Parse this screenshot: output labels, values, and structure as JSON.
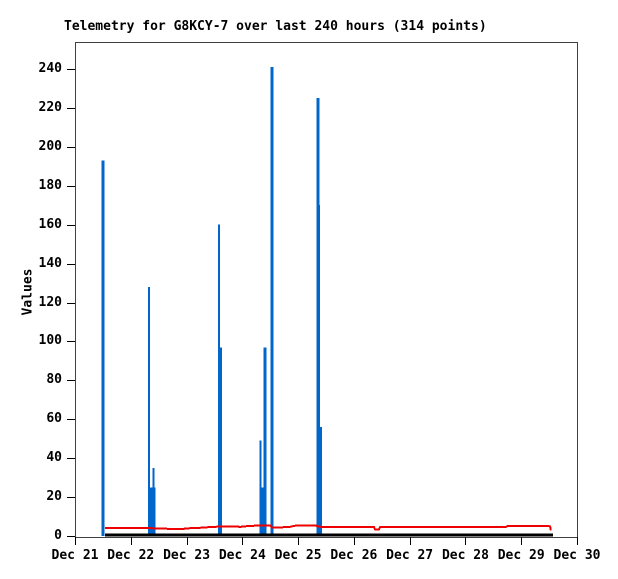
{
  "chart_data": {
    "type": "line",
    "title": "Telemetry for G8KCY-7 over last 240 hours (314 points)",
    "xlabel": "",
    "ylabel": "Values",
    "x_tick_labels": [
      "Dec 21",
      "Dec 22",
      "Dec 23",
      "Dec 24",
      "Dec 25",
      "Dec 26",
      "Dec 27",
      "Dec 28",
      "Dec 29",
      "Dec 30"
    ],
    "x_range": [
      21,
      30
    ],
    "y_ticks": [
      0,
      20,
      40,
      60,
      80,
      100,
      120,
      140,
      160,
      180,
      200,
      220,
      240
    ],
    "y_range": [
      0,
      254
    ],
    "grid": false,
    "legend": "none",
    "colors": {
      "impulse_series": "#0066cc",
      "line_series": "#ee0000",
      "baseline_series": "#000000",
      "border": "#404040"
    },
    "series": [
      {
        "name": "blue-impulse",
        "type": "impulse",
        "color": "#0066cc",
        "points": [
          {
            "x": 21.5,
            "y": 193,
            "w": 3
          },
          {
            "x": 22.33,
            "y": 128,
            "w": 2
          },
          {
            "x": 22.39,
            "y": 25,
            "w": 6
          },
          {
            "x": 22.41,
            "y": 35,
            "w": 2
          },
          {
            "x": 23.58,
            "y": 160,
            "w": 2
          },
          {
            "x": 23.6,
            "y": 97,
            "w": 4
          },
          {
            "x": 24.33,
            "y": 49,
            "w": 2
          },
          {
            "x": 24.37,
            "y": 25,
            "w": 6
          },
          {
            "x": 24.41,
            "y": 97,
            "w": 3
          },
          {
            "x": 24.53,
            "y": 241,
            "w": 3
          },
          {
            "x": 25.36,
            "y": 225,
            "w": 3
          },
          {
            "x": 25.37,
            "y": 170,
            "w": 3
          },
          {
            "x": 25.38,
            "y": 56,
            "w": 5
          }
        ]
      },
      {
        "name": "black-baseline",
        "type": "line",
        "color": "#000000",
        "width": 3,
        "points": [
          [
            21.54,
            0.5
          ],
          [
            29.57,
            0.5
          ]
        ]
      },
      {
        "name": "red-line",
        "type": "line",
        "color": "#ee0000",
        "width": 2,
        "points": [
          [
            21.54,
            4.1
          ],
          [
            22.31,
            4.1
          ],
          [
            22.43,
            3.9
          ],
          [
            22.92,
            3.5
          ],
          [
            22.99,
            3.9
          ],
          [
            23.24,
            4.2
          ],
          [
            23.47,
            4.7
          ],
          [
            23.64,
            4.9
          ],
          [
            23.92,
            4.9
          ],
          [
            23.96,
            4.5
          ],
          [
            23.99,
            4.9
          ],
          [
            24.28,
            5.4
          ],
          [
            24.5,
            5.4
          ],
          [
            24.53,
            4.3
          ],
          [
            24.68,
            4.4
          ],
          [
            24.85,
            4.7
          ],
          [
            24.98,
            5.5
          ],
          [
            25.21,
            5.5
          ],
          [
            25.32,
            5.3
          ],
          [
            25.41,
            4.7
          ],
          [
            26.36,
            4.7
          ],
          [
            26.38,
            3.4
          ],
          [
            26.45,
            3.4
          ],
          [
            26.47,
            4.7
          ],
          [
            28.73,
            4.7
          ],
          [
            28.76,
            5.2
          ],
          [
            29.48,
            5.2
          ],
          [
            29.52,
            4.9
          ],
          [
            29.53,
            2.9
          ]
        ]
      }
    ]
  }
}
